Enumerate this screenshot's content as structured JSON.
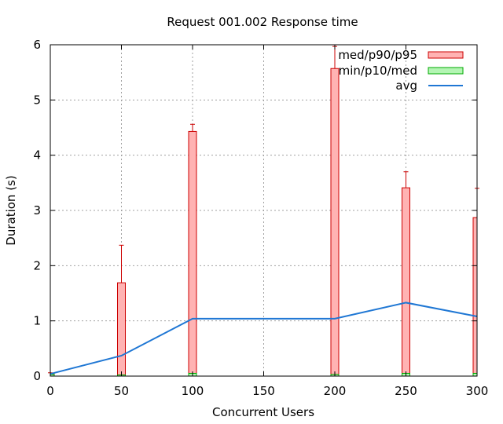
{
  "chart_data": {
    "type": "bar",
    "title": "Request 001.002 Response time",
    "xlabel": "Concurrent Users",
    "ylabel": "Duration (s)",
    "xlim": [
      0,
      300
    ],
    "ylim": [
      0,
      6
    ],
    "xticks": [
      0,
      50,
      100,
      150,
      200,
      250,
      300
    ],
    "yticks": [
      0,
      1,
      2,
      3,
      4,
      5,
      6
    ],
    "grid": true,
    "legend_position": "top-right",
    "x": [
      0,
      50,
      100,
      200,
      250,
      300
    ],
    "series": [
      {
        "name": "med/p90/p95",
        "color": "#ffb3b3",
        "stroke": "#cc0000",
        "med": [
          0.03,
          0.02,
          0.05,
          0.03,
          0.05,
          0.05
        ],
        "p90": [
          0.05,
          1.69,
          4.43,
          5.57,
          3.41,
          2.87
        ],
        "p95": [
          0.06,
          2.37,
          4.56,
          5.97,
          3.7,
          3.4
        ]
      },
      {
        "name": "min/p10/med",
        "color": "#b3f5b3",
        "stroke": "#00aa00",
        "min": [
          0.0,
          0.0,
          0.0,
          0.0,
          0.0,
          0.0
        ],
        "p10": [
          0.0,
          0.0,
          0.0,
          0.0,
          0.0,
          0.0
        ],
        "med": [
          0.03,
          0.02,
          0.05,
          0.03,
          0.05,
          0.05
        ]
      },
      {
        "name": "avg",
        "color": "#1f77d4",
        "values": [
          0.04,
          0.37,
          1.04,
          1.04,
          1.33,
          1.08
        ]
      }
    ]
  }
}
